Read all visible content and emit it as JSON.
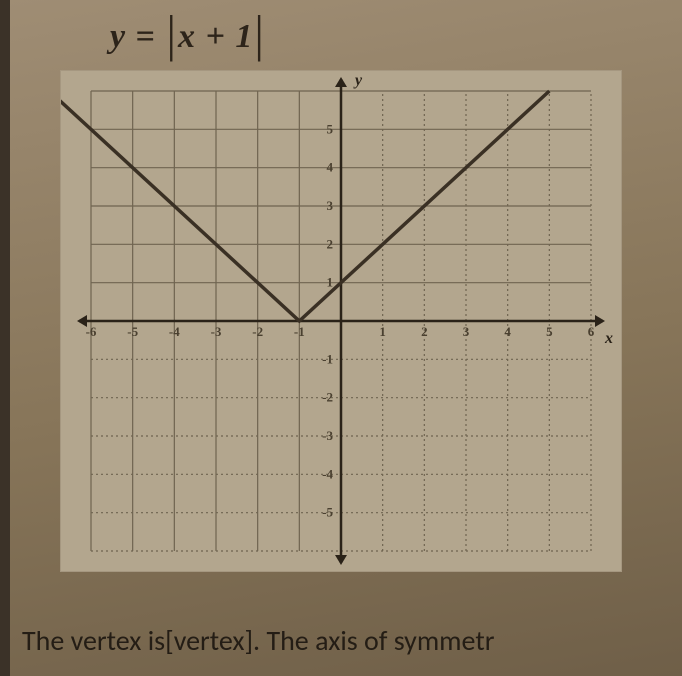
{
  "equation": {
    "lhs": "y",
    "eq": "=",
    "bar_open": "|",
    "inner": "x + 1",
    "bar_close": "|"
  },
  "chart": {
    "type": "line",
    "xlim": [
      -6,
      6
    ],
    "ylim": [
      -6,
      6
    ],
    "xtick_step": 1,
    "ytick_step": 1,
    "x_labels": [
      "-6",
      "-5",
      "-4",
      "-3",
      "-2",
      "-1",
      "",
      "1",
      "2",
      "3",
      "4",
      "5",
      "6"
    ],
    "y_labels": [
      "-5",
      "-4",
      "-3",
      "-2",
      "-1",
      "",
      "1",
      "2",
      "3",
      "4",
      "5"
    ],
    "axis_label_x": "x",
    "axis_label_y": "y",
    "grid_color": "#6f6450",
    "grid_dotted_color": "#6f6450",
    "axis_color": "#2a2218",
    "background_color": "#b3a68e",
    "line_color": "#3a3024",
    "line_width": 3.5,
    "label_fontsize": 13,
    "series": {
      "points": [
        [
          -7,
          6
        ],
        [
          -1,
          0
        ],
        [
          5,
          6
        ]
      ]
    }
  },
  "caption": {
    "text_a": "The vertex is[vertex].  The axis of symmetr"
  }
}
